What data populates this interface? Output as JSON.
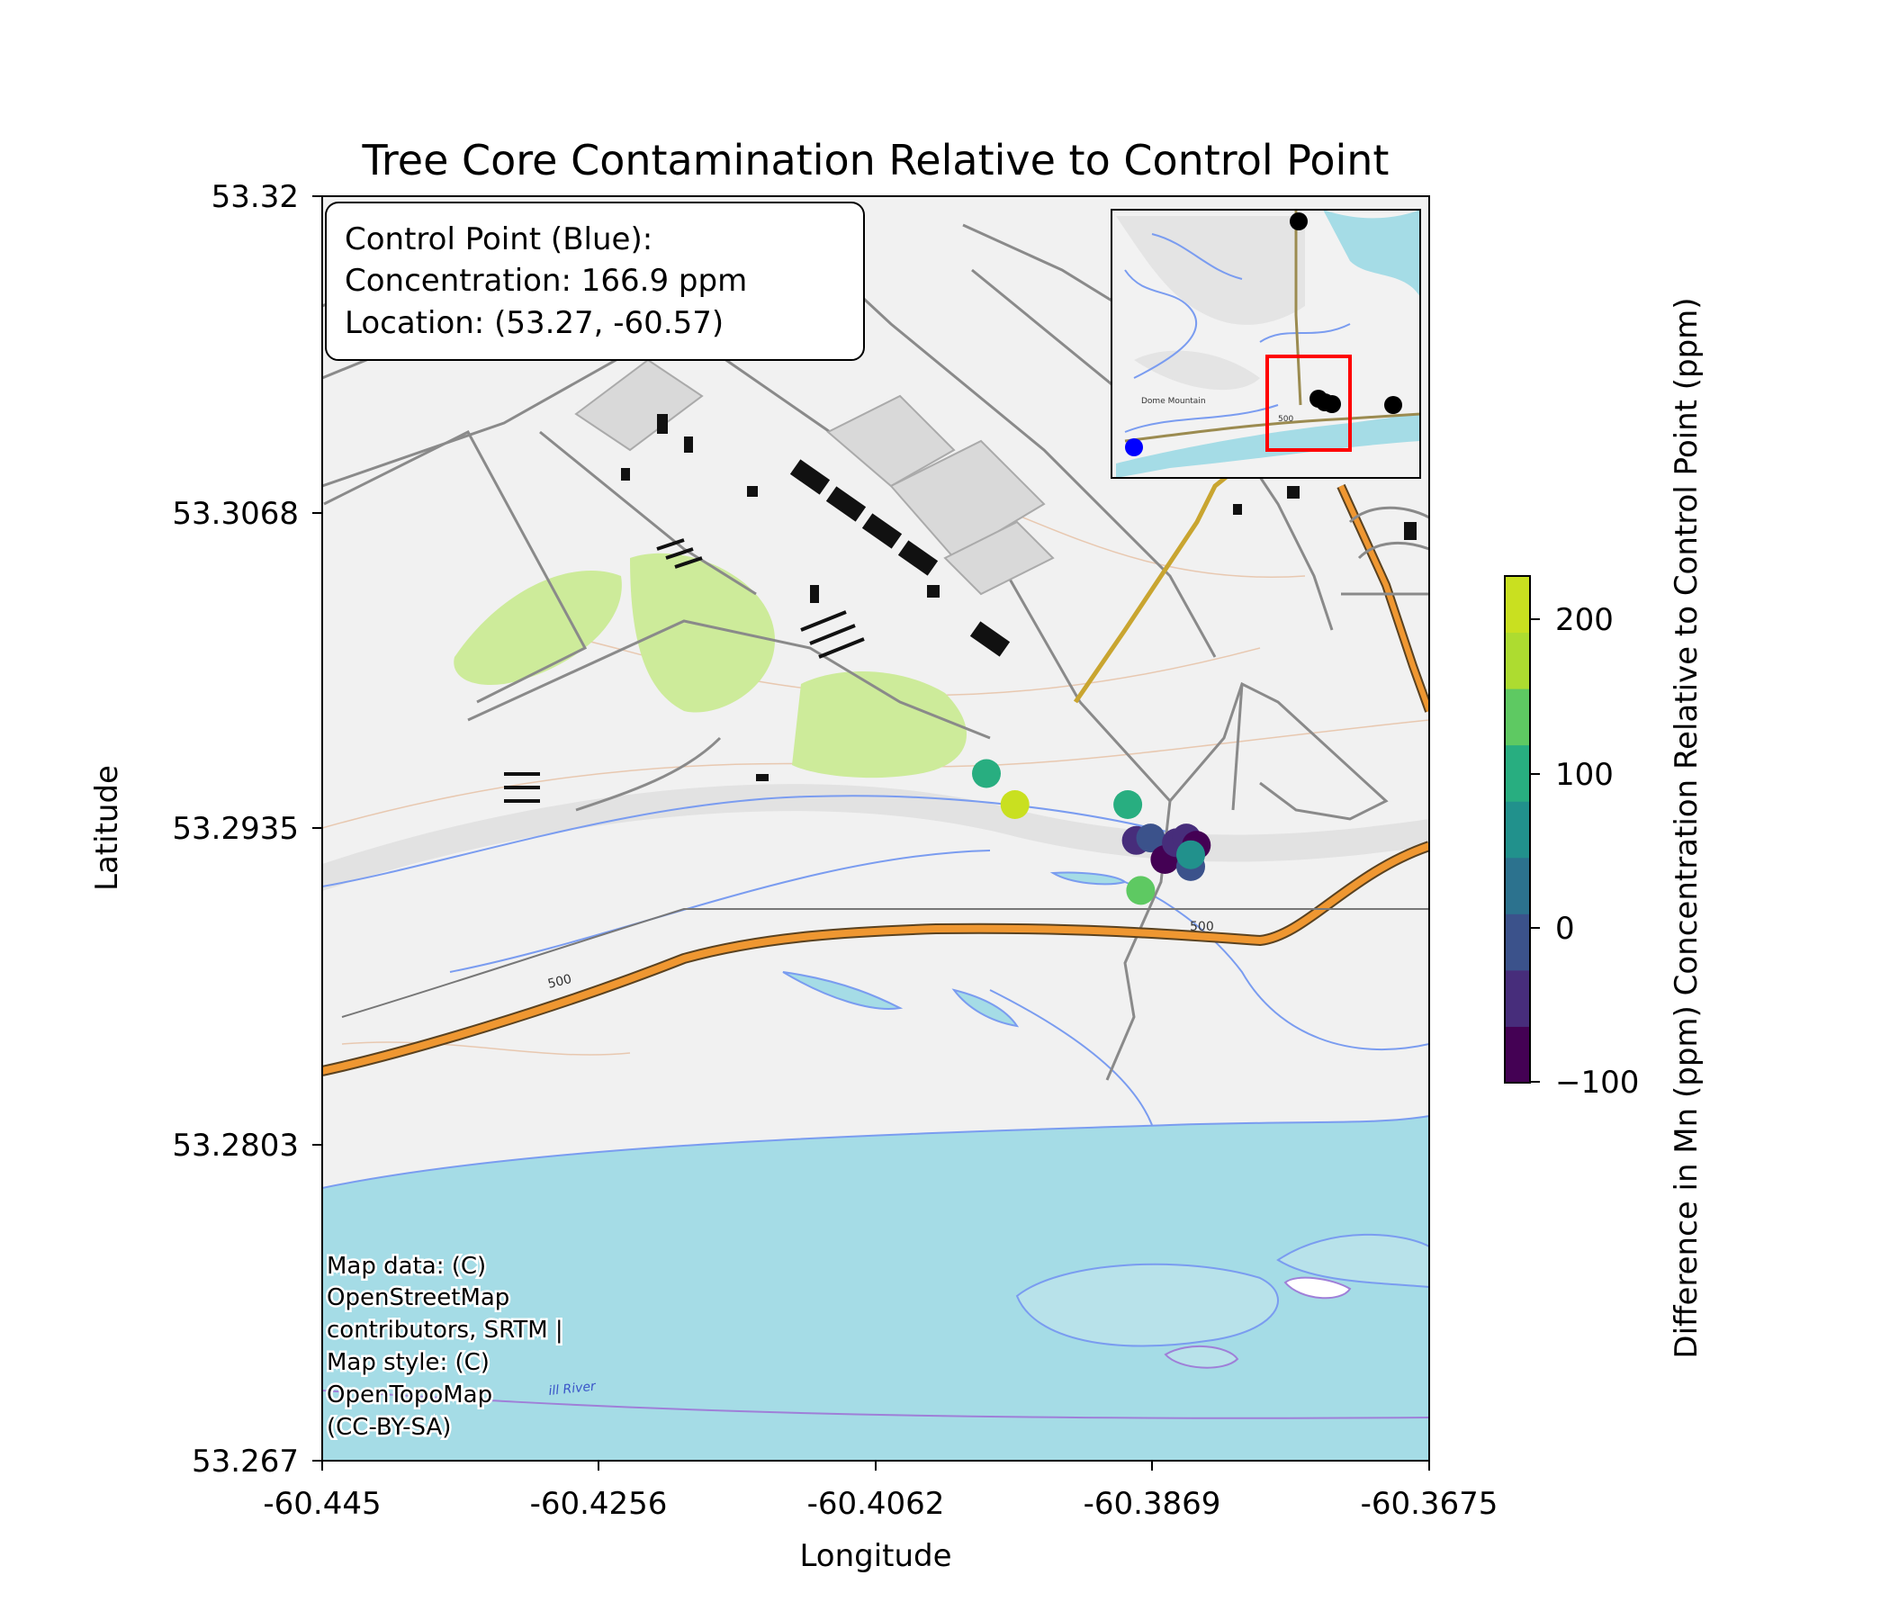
{
  "title": "Tree Core Contamination Relative to Control Point",
  "axes": {
    "xlabel": "Longitude",
    "ylabel": "Latitude",
    "xticks": [
      "-60.445",
      "-60.4256",
      "-60.4062",
      "-60.3869",
      "-60.3675"
    ],
    "yticks": [
      "53.32",
      "53.3068",
      "53.2935",
      "53.2803",
      "53.267"
    ]
  },
  "info_box": {
    "line1": "Control Point (Blue):",
    "line2": "Concentration: 166.9 ppm",
    "line3": "Location: (53.27, -60.57)"
  },
  "attribution": [
    "Map data: (C)",
    "OpenStreetMap",
    "contributors, SRTM |",
    "Map style: (C)",
    "OpenTopoMap",
    "(CC-BY-SA)"
  ],
  "map_labels": {
    "contour_500_a": "500",
    "contour_500_b": "500",
    "river": "ill River",
    "inset_contour": "500",
    "inset_mountain": "Dome Mountain"
  },
  "colorbar": {
    "label": "Difference in Mn (ppm) Concentration Relative to Control Point (ppm)",
    "ticks": [
      "200",
      "100",
      "0",
      "−100"
    ],
    "colors": [
      "#440154",
      "#472d7b",
      "#3b528b",
      "#2c728e",
      "#21918c",
      "#28ae80",
      "#5ec962",
      "#addc30",
      "#c9e020"
    ]
  },
  "colors": {
    "control_point": "#0000ff",
    "inset_points": "#000000",
    "inset_box": "#ff0000"
  },
  "chart_data": {
    "type": "scatter",
    "title": "Tree Core Contamination Relative to Control Point",
    "xlabel": "Longitude",
    "ylabel": "Latitude",
    "xlim": [
      -60.445,
      -60.3675
    ],
    "ylim": [
      53.267,
      53.32
    ],
    "colorbar_range": [
      -110,
      230
    ],
    "control_point": {
      "lat": 53.27,
      "lon": -60.57,
      "concentration_ppm": 166.9
    },
    "points": [
      {
        "lon": -60.3985,
        "lat": 53.2958,
        "diff": 100
      },
      {
        "lon": -60.3965,
        "lat": 53.2945,
        "diff": 220
      },
      {
        "lon": -60.3886,
        "lat": 53.2945,
        "diff": 90
      },
      {
        "lon": -60.388,
        "lat": 53.293,
        "diff": -50
      },
      {
        "lon": -60.387,
        "lat": 53.2931,
        "diff": -30
      },
      {
        "lon": -60.386,
        "lat": 53.2922,
        "diff": -90
      },
      {
        "lon": -60.3852,
        "lat": 53.2929,
        "diff": -60
      },
      {
        "lon": -60.3845,
        "lat": 53.2931,
        "diff": -70
      },
      {
        "lon": -60.3838,
        "lat": 53.2928,
        "diff": -80
      },
      {
        "lon": -60.3842,
        "lat": 53.2919,
        "diff": 0
      },
      {
        "lon": -60.3842,
        "lat": 53.2924,
        "diff": 70
      },
      {
        "lon": -60.3877,
        "lat": 53.2909,
        "diff": 150
      }
    ]
  }
}
